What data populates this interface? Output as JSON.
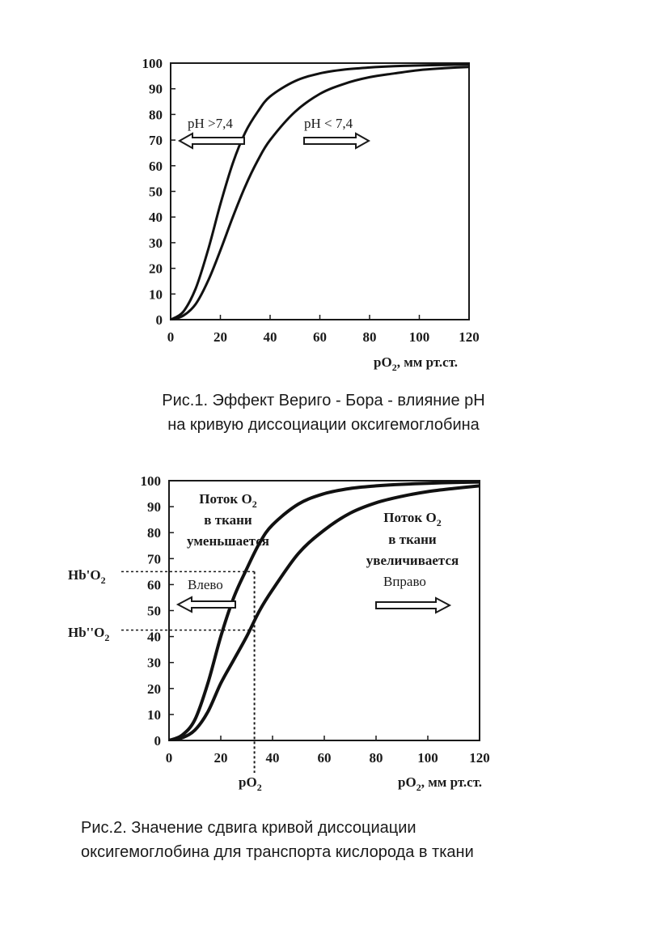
{
  "charts": [
    {
      "xlabel_main": "pO",
      "xlabel_sub": "2",
      "xlabel_rest": ", мм рт.ст.",
      "caption_line1": "Рис.1. Эффект Вериго - Бора - влияние pH",
      "caption_line2": "на кривую диссоциации оксигемоглобина",
      "arrow_left_label": "pH >7,4",
      "arrow_right_label": "pH < 7,4"
    },
    {
      "xlabel_main": "pO",
      "xlabel_sub": "2",
      "xlabel_rest": ", мм рт.ст.",
      "po2_marker_main": "pO",
      "po2_marker_sub": "2",
      "caption_line1": "Рис.2. Значение сдвига кривой диссоциации",
      "caption_line2": "оксигемоглобина для транспорта кислорода в ткани",
      "left_box_line1_main": "Поток O",
      "left_box_line1_sub": "2",
      "left_box_line2": "в ткани",
      "left_box_line3": "уменьшается",
      "left_arrow_label": "Влево",
      "right_box_line1_main": "Поток O",
      "right_box_line1_sub": "2",
      "right_box_line2": "в ткани",
      "right_box_line3": "увеличивается",
      "right_arrow_label": "Вправо",
      "hb1_label_main": "Hb'O",
      "hb1_label_sub": "2",
      "hb2_label_main": "Hb''O",
      "hb2_label_sub": "2"
    }
  ],
  "chart_data": [
    {
      "type": "line",
      "xlim": [
        0,
        120
      ],
      "ylim": [
        0,
        100
      ],
      "x_ticks": [
        0,
        20,
        40,
        60,
        80,
        100,
        120
      ],
      "y_ticks": [
        0,
        10,
        20,
        30,
        40,
        50,
        60,
        70,
        80,
        90,
        100
      ],
      "grid": false,
      "series": [
        {
          "x": [
            0,
            5,
            10,
            15,
            20,
            25,
            30,
            35,
            40,
            50,
            60,
            70,
            80,
            90,
            100,
            110,
            120
          ],
          "y": [
            0,
            3,
            12,
            27,
            45,
            61,
            73,
            81,
            87,
            93,
            96,
            97.5,
            98.3,
            98.8,
            99.1,
            99.3,
            99.5
          ]
        },
        {
          "x": [
            0,
            5,
            10,
            15,
            20,
            25,
            30,
            35,
            40,
            50,
            60,
            70,
            80,
            90,
            100,
            110,
            120
          ],
          "y": [
            0,
            1.5,
            6,
            15,
            27,
            40,
            52,
            62,
            70,
            81,
            88,
            92,
            94.5,
            96,
            97.3,
            98,
            98.5
          ]
        }
      ]
    },
    {
      "type": "line",
      "xlim": [
        0,
        120
      ],
      "ylim": [
        0,
        100
      ],
      "x_ticks": [
        0,
        20,
        40,
        60,
        80,
        100,
        120
      ],
      "y_ticks": [
        0,
        10,
        20,
        30,
        40,
        50,
        60,
        70,
        80,
        90,
        100
      ],
      "grid": false,
      "po2_marker_x": 33,
      "hb1_y": 65,
      "hb2_y": 42.5,
      "series": [
        {
          "x": [
            0,
            5,
            10,
            15,
            20,
            25,
            30,
            35,
            40,
            50,
            60,
            70,
            80,
            90,
            100,
            110,
            120
          ],
          "y": [
            0,
            2,
            8,
            22,
            40,
            55,
            66,
            76,
            83,
            91,
            95,
            97,
            98,
            98.6,
            99,
            99.3,
            99.5
          ]
        },
        {
          "x": [
            0,
            5,
            10,
            15,
            20,
            25,
            30,
            35,
            40,
            50,
            60,
            70,
            80,
            90,
            100,
            110,
            120
          ],
          "y": [
            0,
            1,
            4,
            11,
            22,
            31,
            40,
            50,
            58,
            72,
            81,
            87.5,
            91.5,
            94,
            95.8,
            97,
            98
          ]
        }
      ]
    }
  ]
}
